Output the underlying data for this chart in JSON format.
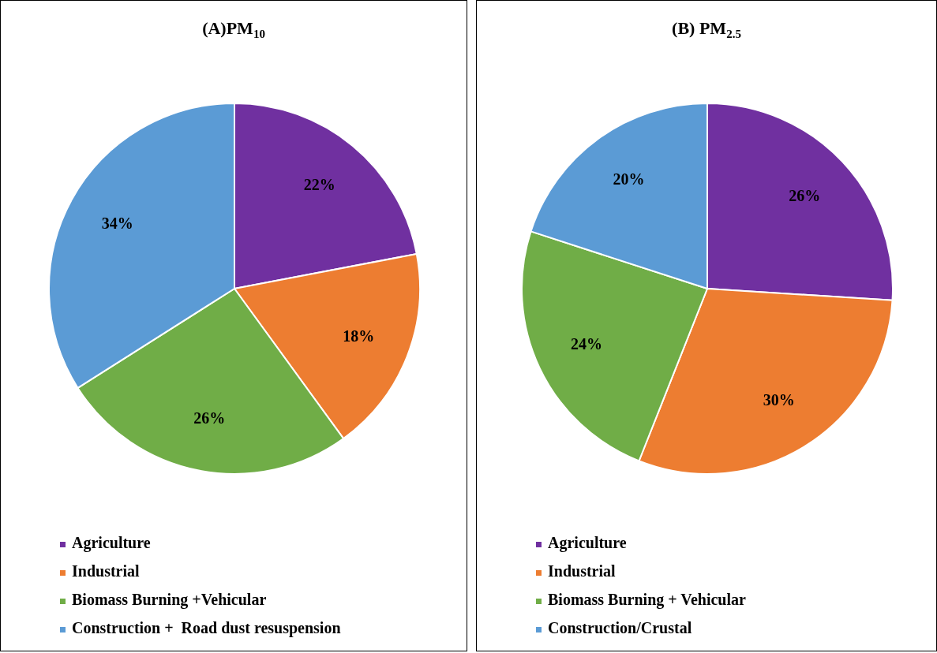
{
  "chart_data": [
    {
      "type": "pie",
      "title": "(A)PM$_{10}$",
      "categories": [
        "Agriculture",
        "Industrial",
        "Biomass Burning +Vehicular",
        "Construction +  Road dust resuspension"
      ],
      "values": [
        22,
        18,
        26,
        34
      ],
      "value_labels": [
        "22%",
        "18%",
        "26%",
        "34%"
      ],
      "colors": [
        "#7030a0",
        "#ed7d31",
        "#70ad47",
        "#5b9bd5"
      ],
      "legend": "bottom left"
    },
    {
      "type": "pie",
      "title": "(B) PM$_{2.5}$",
      "categories": [
        "Agriculture",
        "Industrial",
        "Biomass Burning + Vehicular",
        "Construction/Crustal"
      ],
      "values": [
        26,
        30,
        24,
        20
      ],
      "value_labels": [
        "26%",
        "30%",
        "24%",
        "20%"
      ],
      "colors": [
        "#7030a0",
        "#ed7d31",
        "#70ad47",
        "#5b9bd5"
      ],
      "legend": "bottom left"
    }
  ]
}
